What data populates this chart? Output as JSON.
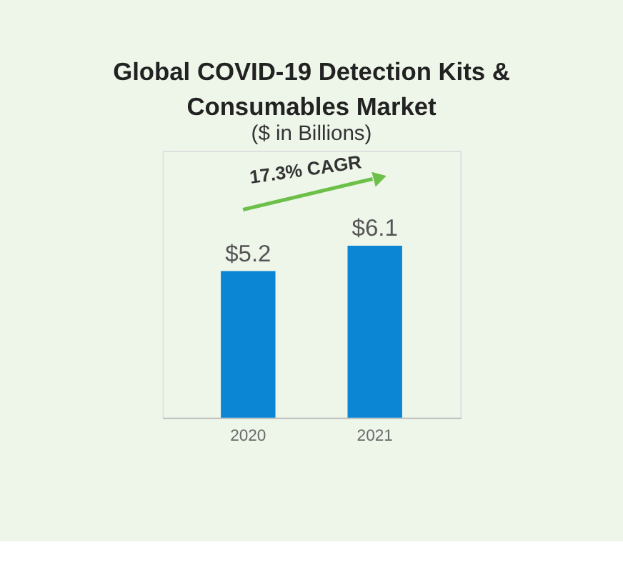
{
  "chart_data": {
    "type": "bar",
    "title": "Global COVID-19 Detection Kits & Consumables Market",
    "subtitle": "($ in Billions)",
    "categories": [
      "2020",
      "2021"
    ],
    "values": [
      5.2,
      6.1
    ],
    "value_labels": [
      "$5.2",
      "$6.1"
    ],
    "color": "#0a86d4",
    "annotations": [
      "17.3% CAGR"
    ]
  }
}
